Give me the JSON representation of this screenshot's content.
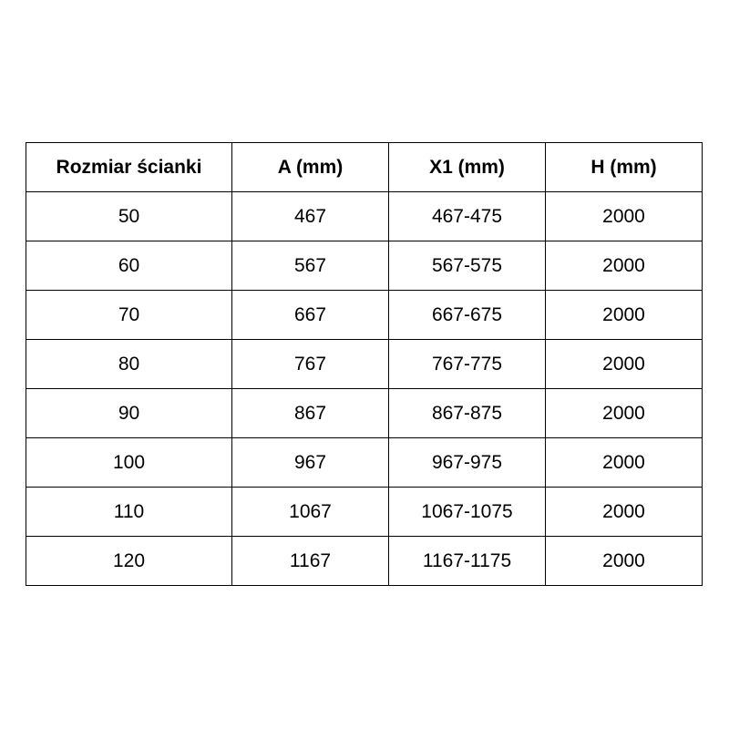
{
  "table": {
    "headers": [
      "Rozmiar ścianki",
      "A (mm)",
      "X1 (mm)",
      "H (mm)"
    ],
    "rows": [
      [
        "50",
        "467",
        "467-475",
        "2000"
      ],
      [
        "60",
        "567",
        "567-575",
        "2000"
      ],
      [
        "70",
        "667",
        "667-675",
        "2000"
      ],
      [
        "80",
        "767",
        "767-775",
        "2000"
      ],
      [
        "90",
        "867",
        "867-875",
        "2000"
      ],
      [
        "100",
        "967",
        "967-975",
        "2000"
      ],
      [
        "110",
        "1067",
        "1067-1075",
        "2000"
      ],
      [
        "120",
        "1167",
        "1167-1175",
        "2000"
      ]
    ]
  }
}
